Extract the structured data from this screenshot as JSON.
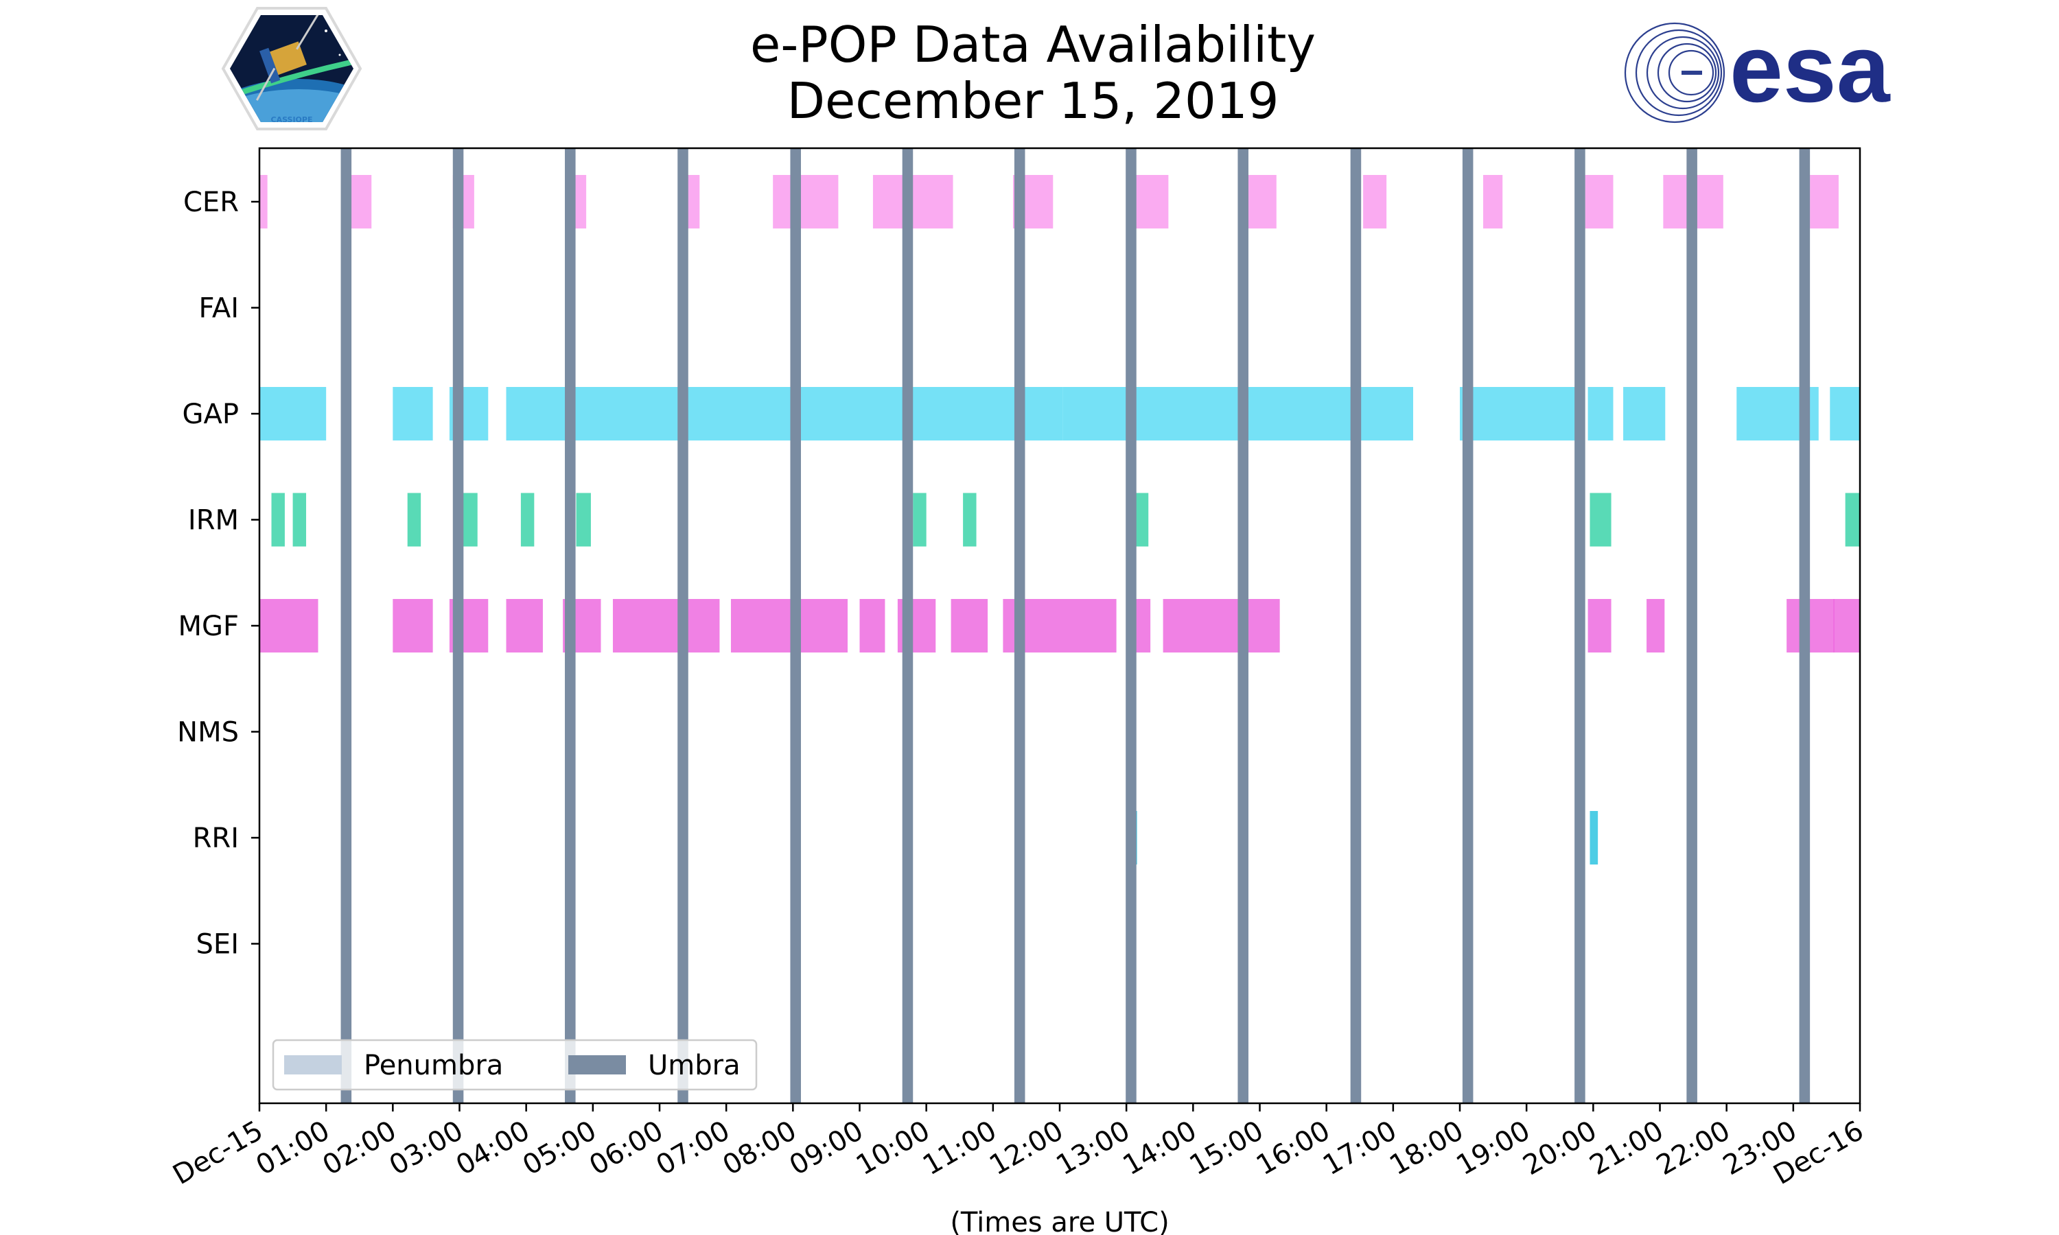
{
  "chart_data": {
    "type": "timeline",
    "title": [
      "e-POP Data Availability",
      "December 15, 2019"
    ],
    "xlabel": "(Times are UTC)",
    "xlim": [
      0,
      24
    ],
    "x_unit": "hours UTC",
    "x_ticks": [
      {
        "t": 0,
        "label": "Dec-15"
      },
      {
        "t": 1,
        "label": "01:00"
      },
      {
        "t": 2,
        "label": "02:00"
      },
      {
        "t": 3,
        "label": "03:00"
      },
      {
        "t": 4,
        "label": "04:00"
      },
      {
        "t": 5,
        "label": "05:00"
      },
      {
        "t": 6,
        "label": "06:00"
      },
      {
        "t": 7,
        "label": "07:00"
      },
      {
        "t": 8,
        "label": "08:00"
      },
      {
        "t": 9,
        "label": "09:00"
      },
      {
        "t": 10,
        "label": "10:00"
      },
      {
        "t": 11,
        "label": "11:00"
      },
      {
        "t": 12,
        "label": "12:00"
      },
      {
        "t": 13,
        "label": "13:00"
      },
      {
        "t": 14,
        "label": "14:00"
      },
      {
        "t": 15,
        "label": "15:00"
      },
      {
        "t": 16,
        "label": "16:00"
      },
      {
        "t": 17,
        "label": "17:00"
      },
      {
        "t": 18,
        "label": "18:00"
      },
      {
        "t": 19,
        "label": "19:00"
      },
      {
        "t": 20,
        "label": "20:00"
      },
      {
        "t": 21,
        "label": "21:00"
      },
      {
        "t": 22,
        "label": "22:00"
      },
      {
        "t": 23,
        "label": "23:00"
      },
      {
        "t": 24,
        "label": "Dec-16"
      }
    ],
    "instruments": [
      "CER",
      "FAI",
      "GAP",
      "IRM",
      "MGF",
      "NMS",
      "RRI",
      "SEI"
    ],
    "series": [
      {
        "name": "CER",
        "color": "#f99cef",
        "intervals": [
          [
            0,
            0.12
          ],
          [
            1.23,
            1.68
          ],
          [
            2.9,
            3.22
          ],
          [
            4.58,
            4.9
          ],
          [
            6.33,
            6.6
          ],
          [
            7.7,
            8.68
          ],
          [
            9.2,
            10.4
          ],
          [
            11.3,
            11.9
          ],
          [
            13.0,
            13.63
          ],
          [
            14.8,
            15.25
          ],
          [
            16.55,
            16.9
          ],
          [
            18.35,
            18.64
          ],
          [
            19.88,
            20.3
          ],
          [
            21.05,
            21.95
          ],
          [
            23.25,
            23.68
          ]
        ]
      },
      {
        "name": "FAI",
        "color": "#9ecbe9",
        "intervals": []
      },
      {
        "name": "GAP",
        "color": "#5ddcf5",
        "intervals": [
          [
            0,
            1.0
          ],
          [
            2.0,
            2.6
          ],
          [
            2.85,
            3.43
          ],
          [
            3.7,
            12.05
          ],
          [
            12.05,
            16.45
          ],
          [
            16.45,
            17.3
          ],
          [
            18.0,
            19.8
          ],
          [
            19.92,
            20.3
          ],
          [
            20.45,
            21.08
          ],
          [
            22.15,
            23.38
          ],
          [
            23.55,
            24
          ]
        ]
      },
      {
        "name": "IRM",
        "color": "#3cd4a9",
        "intervals": [
          [
            0.18,
            0.38
          ],
          [
            0.5,
            0.7
          ],
          [
            2.22,
            2.42
          ],
          [
            2.95,
            3.27
          ],
          [
            3.92,
            4.12
          ],
          [
            4.75,
            4.97
          ],
          [
            9.8,
            10.0
          ],
          [
            10.55,
            10.75
          ],
          [
            13.03,
            13.33
          ],
          [
            19.95,
            20.27
          ],
          [
            23.78,
            24
          ]
        ]
      },
      {
        "name": "MGF",
        "color": "#ed6bdf",
        "intervals": [
          [
            0,
            0.88
          ],
          [
            2.0,
            2.6
          ],
          [
            2.85,
            3.43
          ],
          [
            3.7,
            4.25
          ],
          [
            4.55,
            5.12
          ],
          [
            5.3,
            6.9
          ],
          [
            7.07,
            8.82
          ],
          [
            9.0,
            9.38
          ],
          [
            9.57,
            10.14
          ],
          [
            10.37,
            10.92
          ],
          [
            11.15,
            12.85
          ],
          [
            13.0,
            13.36
          ],
          [
            13.55,
            15.3
          ],
          [
            19.92,
            20.27
          ],
          [
            20.8,
            21.07
          ],
          [
            22.9,
            23.62
          ],
          [
            23.6,
            24
          ]
        ]
      },
      {
        "name": "NMS",
        "color": "#b07ff0",
        "intervals": []
      },
      {
        "name": "RRI",
        "color": "#2fc4e0",
        "intervals": [
          [
            13.05,
            13.16
          ],
          [
            19.95,
            20.07
          ]
        ]
      },
      {
        "name": "SEI",
        "color": "#f0a040",
        "intervals": []
      }
    ],
    "umbra": [
      1.3,
      2.98,
      4.66,
      6.35,
      8.04,
      9.72,
      11.4,
      13.07,
      14.75,
      16.44,
      18.12,
      19.8,
      21.48,
      23.17
    ],
    "umbra_width_hours": 0.16,
    "umbra_color": "#7a8ca2",
    "penumbra_color": "#c4d1e0",
    "legend": {
      "location": "lower-left",
      "entries": [
        {
          "label": "Penumbra",
          "color": "#c4d1e0"
        },
        {
          "label": "Umbra",
          "color": "#7a8ca2"
        }
      ]
    }
  },
  "logos": {
    "left": "CASSIOPE",
    "right": "esa"
  }
}
